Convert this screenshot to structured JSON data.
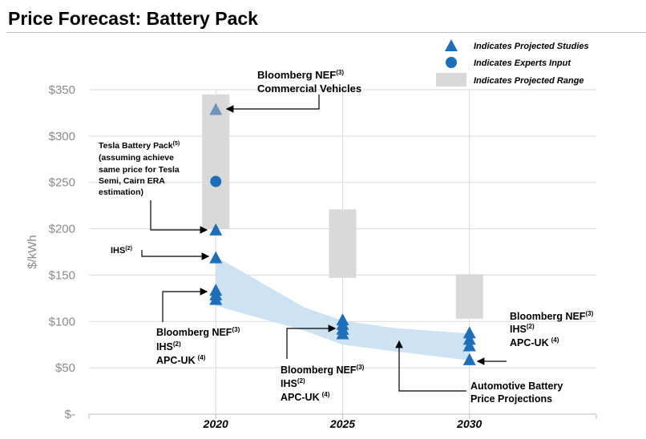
{
  "title": "Price Forecast: Battery Pack",
  "legend": {
    "studies": "Indicates Projected Studies",
    "experts": "Indicates Experts Input",
    "range": "Indicates Projected Range"
  },
  "annotations": {
    "bnef_cv_line1": "Bloomberg NEF",
    "bnef_cv_sup": "(3)",
    "bnef_cv_line2": "Commercial Vehicles",
    "tesla_line1": "Tesla Battery Pack",
    "tesla_sup": "(5)",
    "tesla_line2": "(assuming achieve",
    "tesla_line3": "same price for Tesla",
    "tesla_line4": "Semi, Cairn ERA",
    "tesla_line5": "estimation)",
    "ihs": "IHS",
    "ihs_sup": "(2)",
    "group2020_bnef": "Bloomberg NEF",
    "group2020_bnef_sup": "(3)",
    "group2020_ihs": "IHS",
    "group2020_ihs_sup": "(2)",
    "group2020_apc": "APC-UK",
    "group2020_apc_sup": "(4)",
    "group2025_bnef": "Bloomberg NEF",
    "group2025_bnef_sup": "(3)",
    "group2025_ihs": "IHS",
    "group2025_ihs_sup": "(2)",
    "group2025_apc": "APC-UK",
    "group2025_apc_sup": "(4)",
    "group2030_bnef": "Bloomberg NEF",
    "group2030_bnef_sup": "(3)",
    "group2030_ihs": "IHS",
    "group2030_ihs_sup": "(2)",
    "group2030_apc": "APC-UK",
    "group2030_apc_sup": "(4)",
    "auto_line1": "Automotive Battery",
    "auto_line2": "Price Projections"
  },
  "colors": {
    "marker": "#1f6fb8",
    "marker_light": "#6f94b8",
    "band": "#cde3f3",
    "range": "#d9d9d9",
    "grid": "#d9d9d9"
  },
  "chart_data": {
    "type": "scatter",
    "ylabel": "$/kWh",
    "ylim": [
      0,
      350
    ],
    "yticks": [
      0,
      50,
      100,
      150,
      200,
      250,
      300,
      350
    ],
    "ytick_labels": [
      "$-",
      "$50",
      "$100",
      "$150",
      "$200",
      "$250",
      "$300",
      "$350"
    ],
    "xlim": [
      2015,
      2035
    ],
    "xticks": [
      2020,
      2025,
      2030
    ],
    "xtick_labels": [
      "2020",
      "2025",
      "2030"
    ],
    "grid": true,
    "legend_position": "top-right",
    "projected_studies": [
      {
        "x": 2020,
        "y": 328
      },
      {
        "x": 2020,
        "y": 198
      },
      {
        "x": 2020,
        "y": 168
      },
      {
        "x": 2020,
        "y": 133
      },
      {
        "x": 2020,
        "y": 128
      },
      {
        "x": 2020,
        "y": 123
      },
      {
        "x": 2025,
        "y": 101
      },
      {
        "x": 2025,
        "y": 96
      },
      {
        "x": 2025,
        "y": 91
      },
      {
        "x": 2025,
        "y": 86
      },
      {
        "x": 2030,
        "y": 87
      },
      {
        "x": 2030,
        "y": 80
      },
      {
        "x": 2030,
        "y": 73
      },
      {
        "x": 2030,
        "y": 58
      }
    ],
    "experts_input": [
      {
        "x": 2020,
        "y": 251
      }
    ],
    "projected_ranges": [
      {
        "x": 2020,
        "low": 200,
        "high": 345
      },
      {
        "x": 2025,
        "low": 147,
        "high": 221
      },
      {
        "x": 2030,
        "low": 103,
        "high": 151
      }
    ],
    "price_projection_band": {
      "x": [
        2020,
        2023.5,
        2025,
        2027,
        2030
      ],
      "upper": [
        170,
        115,
        101,
        93,
        87
      ],
      "lower": [
        117,
        90,
        75,
        68,
        58
      ]
    }
  }
}
